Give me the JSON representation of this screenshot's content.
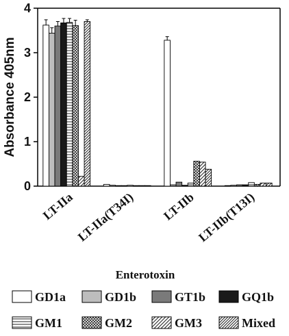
{
  "chart_data": {
    "type": "bar",
    "xlabel": "Enterotoxin",
    "ylabel": "Absorbance 405nm",
    "ylim": [
      0,
      4
    ],
    "yticks": [
      0,
      1,
      2,
      3,
      4
    ],
    "categories": [
      "LT-IIa",
      "LT-IIa(T34I)",
      "LT-IIb",
      "LT-IIb(T13I)"
    ],
    "legend_position": "bottom",
    "grid": false,
    "series": [
      {
        "name": "GD1a",
        "pattern": "white",
        "values": [
          3.62,
          0.04,
          3.28,
          0.01
        ],
        "errors": [
          0.12,
          0,
          0.08,
          0
        ]
      },
      {
        "name": "GD1b",
        "pattern": "lightgray",
        "values": [
          3.44,
          0.02,
          0.03,
          0.02
        ],
        "errors": [
          0.12,
          0,
          0,
          0
        ]
      },
      {
        "name": "GT1b",
        "pattern": "gray",
        "values": [
          3.6,
          0.01,
          0.09,
          0.03
        ],
        "errors": [
          0.1,
          0,
          0,
          0
        ]
      },
      {
        "name": "GQ1b",
        "pattern": "black",
        "values": [
          3.67,
          0.01,
          0.02,
          0.03
        ],
        "errors": [
          0.1,
          0,
          0,
          0
        ]
      },
      {
        "name": "GM1",
        "pattern": "horizontal",
        "values": [
          3.68,
          0.02,
          0.07,
          0.08
        ],
        "errors": [
          0.09,
          0,
          0,
          0
        ]
      },
      {
        "name": "GM2",
        "pattern": "crosshatch",
        "values": [
          3.61,
          0.01,
          0.56,
          0.04
        ],
        "errors": [
          0.12,
          0,
          0,
          0
        ]
      },
      {
        "name": "GM3",
        "pattern": "diagonal",
        "values": [
          0.22,
          0.01,
          0.54,
          0.07
        ],
        "errors": [
          0,
          0,
          0,
          0
        ]
      },
      {
        "name": "Mixed",
        "pattern": "diagonal-dense",
        "values": [
          3.7,
          0.01,
          0.38,
          0.07
        ],
        "errors": [
          0.04,
          0,
          0,
          0
        ]
      }
    ]
  }
}
